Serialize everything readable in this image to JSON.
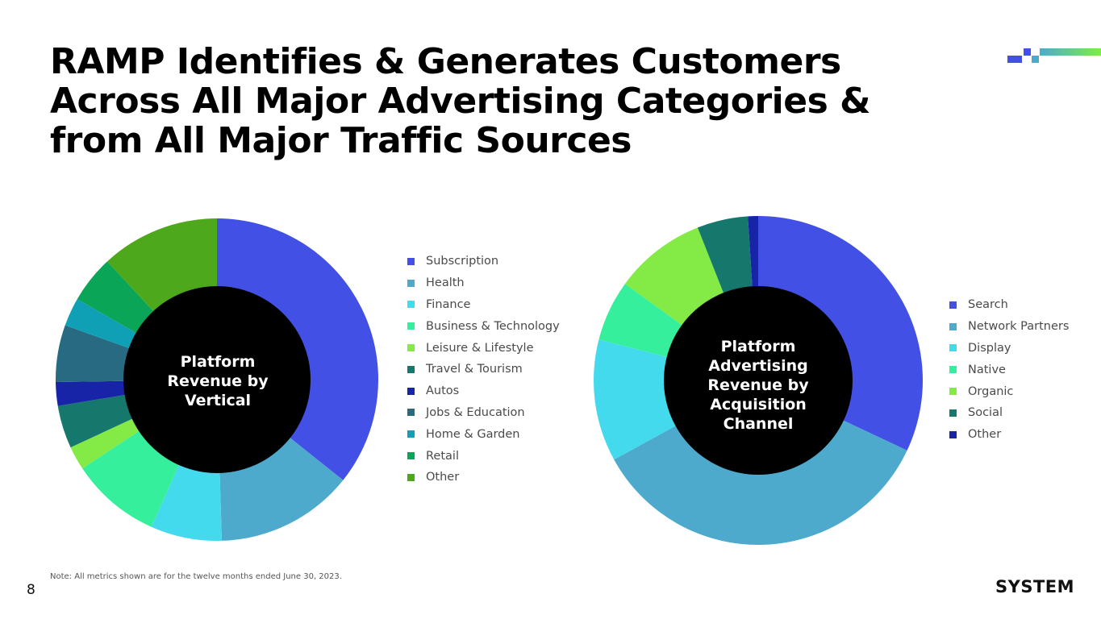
{
  "slide": {
    "title_lines": [
      "RAMP Identifies & Generates Customers",
      "Across All Major Advertising Categories &",
      "from All Major Traffic Sources"
    ],
    "note": "Note: All metrics shown are for the twelve months ended June 30, 2023.",
    "page_number": "8",
    "brand": "SYSTEM"
  },
  "chart_data": [
    {
      "type": "pie",
      "subtype": "donut",
      "center_label": "Platform\nRevenue by\nVertical",
      "categories": [
        "Subscription",
        "Health",
        "Finance",
        "Business & Technology",
        "Leisure & Lifestyle",
        "Travel & Tourism",
        "Autos",
        "Jobs & Education",
        "Home & Garden",
        "Retail",
        "Other"
      ],
      "values": [
        37.5,
        14.5,
        7.5,
        9.5,
        2.5,
        4.5,
        2.5,
        6,
        3,
        5,
        12.5
      ],
      "colors": [
        "#4250e6",
        "#4eaacc",
        "#44daed",
        "#36ef9c",
        "#84ea46",
        "#16786c",
        "#1724a8",
        "#276a82",
        "#0fa0b6",
        "#0aa557",
        "#4ea81b"
      ],
      "legend_position": "right"
    },
    {
      "type": "pie",
      "subtype": "donut",
      "center_label": "Platform\nAdvertising\nRevenue by\nAcquisition\nChannel",
      "categories": [
        "Search",
        "Network Partners",
        "Display",
        "Native",
        "Organic",
        "Social",
        "Other"
      ],
      "values": [
        32,
        35,
        12,
        6,
        9,
        5,
        1
      ],
      "colors": [
        "#4250e6",
        "#4eaacc",
        "#44daed",
        "#36ef9c",
        "#84ea46",
        "#16786c",
        "#1724a8"
      ],
      "legend_position": "right"
    }
  ]
}
